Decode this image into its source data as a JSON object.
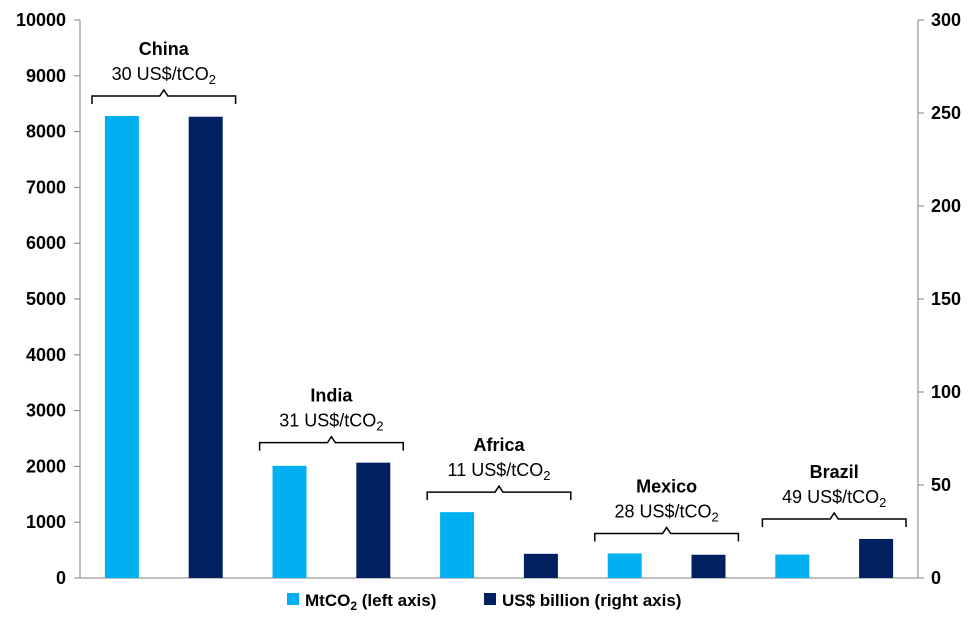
{
  "chart_data": {
    "type": "bar",
    "title": "",
    "categories": [
      "China",
      "India",
      "Africa",
      "Mexico",
      "Brazil"
    ],
    "annotations": [
      {
        "name": "China",
        "price": "30 US$/tCO₂"
      },
      {
        "name": "India",
        "price": "31 US$/tCO₂"
      },
      {
        "name": "Africa",
        "price": "11 US$/tCO₂"
      },
      {
        "name": "Mexico",
        "price": "28 US$/tCO₂"
      },
      {
        "name": "Brazil",
        "price": "49 US$/tCO₂"
      }
    ],
    "series": [
      {
        "name": "MtCO₂ (left axis)",
        "axis": "left",
        "color": "#00B0F0",
        "values": [
          8280,
          2010,
          1180,
          440,
          420
        ]
      },
      {
        "name": "US$ billion (right axis)",
        "axis": "right",
        "color": "#002060",
        "values": [
          248,
          62,
          13,
          12.5,
          21
        ]
      }
    ],
    "left_axis": {
      "min": 0,
      "max": 10000,
      "ticks": [
        0,
        1000,
        2000,
        3000,
        4000,
        5000,
        6000,
        7000,
        8000,
        9000,
        10000
      ]
    },
    "right_axis": {
      "min": 0,
      "max": 300,
      "ticks": [
        0,
        50,
        100,
        150,
        200,
        250,
        300
      ]
    },
    "grid": false,
    "legend_position": "bottom"
  }
}
